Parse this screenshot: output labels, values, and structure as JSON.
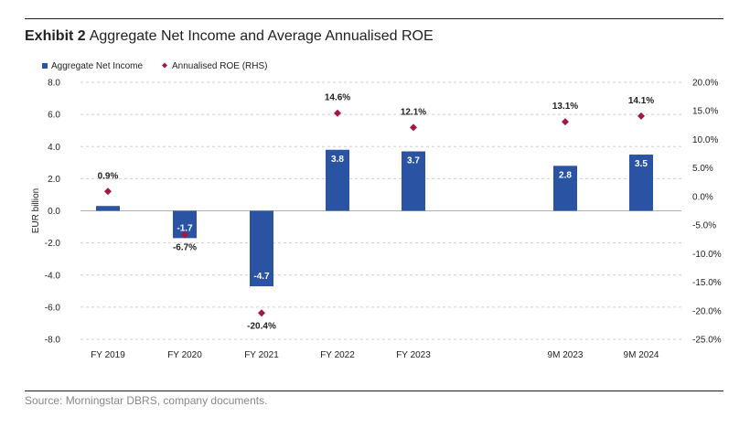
{
  "header": {
    "lead": "Exhibit 2",
    "title": "Aggregate Net Income and Average Annualised ROE"
  },
  "footer": {
    "source": "Source: Morningstar DBRS, company documents."
  },
  "colors": {
    "bar": "#2a54a3",
    "marker": "#a31747",
    "grid": "#cfcfcf",
    "text": "#222222"
  },
  "chart_data": {
    "type": "bar",
    "title": "Aggregate Net Income and Average Annualised ROE",
    "categories": [
      "FY 2019",
      "FY 2020",
      "FY 2021",
      "FY 2022",
      "FY 2023",
      "",
      "9M 2023",
      "9M 2024"
    ],
    "series": [
      {
        "name": "Aggregate Net Income",
        "type": "bar",
        "axis": "left",
        "values": [
          0.3,
          -1.7,
          -4.7,
          3.8,
          3.7,
          null,
          2.8,
          3.5
        ],
        "labels": [
          "",
          "-1.7",
          "-4.7",
          "3.8",
          "3.7",
          "",
          "2.8",
          "3.5"
        ]
      },
      {
        "name": "Annualised ROE (RHS)",
        "type": "scatter",
        "axis": "right",
        "values": [
          0.9,
          -6.7,
          -20.4,
          14.6,
          12.1,
          null,
          13.1,
          14.1
        ],
        "labels": [
          "0.9%",
          "-6.7%",
          "-20.4%",
          "14.6%",
          "12.1%",
          "",
          "13.1%",
          "14.1%"
        ]
      }
    ],
    "ylabel": "EUR billion",
    "ylim": [
      -8,
      8
    ],
    "yticks": [
      "8.0",
      "6.0",
      "4.0",
      "2.0",
      "0.0",
      "-2.0",
      "-4.0",
      "-6.0",
      "-8.0"
    ],
    "y2lim": [
      -25,
      20
    ],
    "y2ticks": [
      "20.0%",
      "15.0%",
      "10.0%",
      "5.0%",
      "0.0%",
      "-5.0%",
      "-10.0%",
      "-15.0%",
      "-20.0%",
      "-25.0%"
    ],
    "legend": [
      "Aggregate Net Income",
      "Annualised ROE (RHS)"
    ],
    "legend_position": "top-left",
    "grid": "horizontal"
  }
}
